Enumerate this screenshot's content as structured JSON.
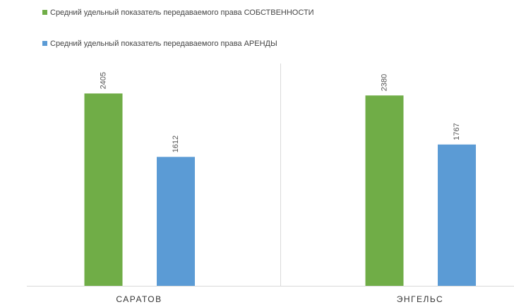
{
  "chart_data": {
    "type": "bar",
    "categories": [
      "САРАТОВ",
      "ЭНГЕЛЬС"
    ],
    "series": [
      {
        "name": "Средний удельный показатель передаваемого права СОБСТВЕННОСТИ",
        "color": "#70ad47",
        "values": [
          2405,
          2380
        ]
      },
      {
        "name": "Средний удельный показатель передаваемого права АРЕНДЫ",
        "color": "#5b9bd5",
        "values": [
          1612,
          1767
        ]
      }
    ],
    "ylim": [
      0,
      3000
    ],
    "legend": "top-left"
  }
}
